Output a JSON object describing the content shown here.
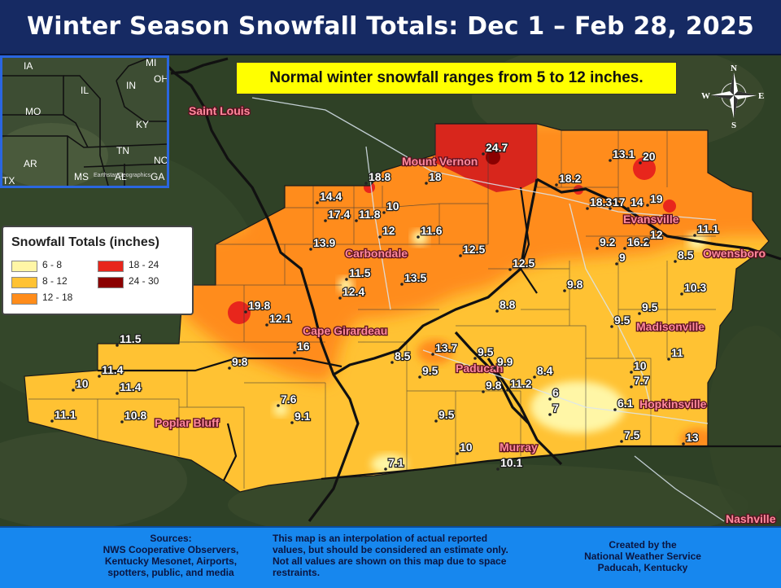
{
  "title": "Winter Season Snowfall Totals: Dec 1 – Feb 28, 2025",
  "note": "Normal winter snowfall ranges from 5 to 12 inches.",
  "legend": {
    "title": "Snowfall Totals (inches)",
    "items": [
      {
        "label": "6 - 8",
        "color": "#fff6a6"
      },
      {
        "label": "8 - 12",
        "color": "#ffc233"
      },
      {
        "label": "12 - 18",
        "color": "#ff8c1a"
      },
      {
        "label": "18 - 24",
        "color": "#e8261c"
      },
      {
        "label": "24 - 30",
        "color": "#8b0000"
      }
    ]
  },
  "inset": {
    "states": [
      "IA",
      "MI",
      "IL",
      "IN",
      "OH",
      "MO",
      "KY",
      "TN",
      "AR",
      "NC",
      "MS",
      "AL",
      "GA",
      "TX"
    ],
    "credit": "Earthstar Geographics"
  },
  "compass": {
    "n": "N",
    "s": "S",
    "e": "E",
    "w": "W"
  },
  "cities": [
    "Saint Louis",
    "Mount Vernon",
    "Carbondale",
    "Evansville",
    "Owensboro",
    "Cape Girardeau",
    "Madisonville",
    "Paducah",
    "Hopkinsville",
    "Poplar Bluff",
    "Murray",
    "Nashville"
  ],
  "values": [
    "24.7",
    "13.1",
    "20",
    "18.8",
    "18",
    "18.2",
    "14.4",
    "10",
    "18.3",
    "17",
    "14",
    "19",
    "17.4",
    "11.8",
    "12",
    "11.6",
    "11.1",
    "13.9",
    "9.2",
    "16.2",
    "12",
    "12.5",
    "9",
    "8.5",
    "11.5",
    "12.5",
    "13.5",
    "12.4",
    "9.8",
    "10.3",
    "19.8",
    "12.1",
    "8.8",
    "9.5",
    "11.5",
    "9.5",
    "16",
    "13.7",
    "9.5",
    "8.5",
    "11",
    "11.4",
    "9.8",
    "9.5",
    "9.9",
    "10",
    "10",
    "11.4",
    "8.4",
    "7.7",
    "9.8",
    "11.2",
    "6",
    "6.1",
    "7.6",
    "7",
    "11.1",
    "10.8",
    "9.1",
    "9.5",
    "7.5",
    "13",
    "10",
    "7.1",
    "10.1"
  ],
  "sources": {
    "heading": "Sources:",
    "lines": [
      "NWS Cooperative Observers,",
      "Kentucky Mesonet, Airports,",
      "spotters, public, and media"
    ]
  },
  "disclaimer": [
    "This map is an interpolation of actual reported",
    "values, but should be considered an estimate only.",
    "Not all values are shown on this map due to space",
    "restraints."
  ],
  "credit": [
    "Created by the",
    "National Weather Service",
    "Paducah, Kentucky"
  ]
}
